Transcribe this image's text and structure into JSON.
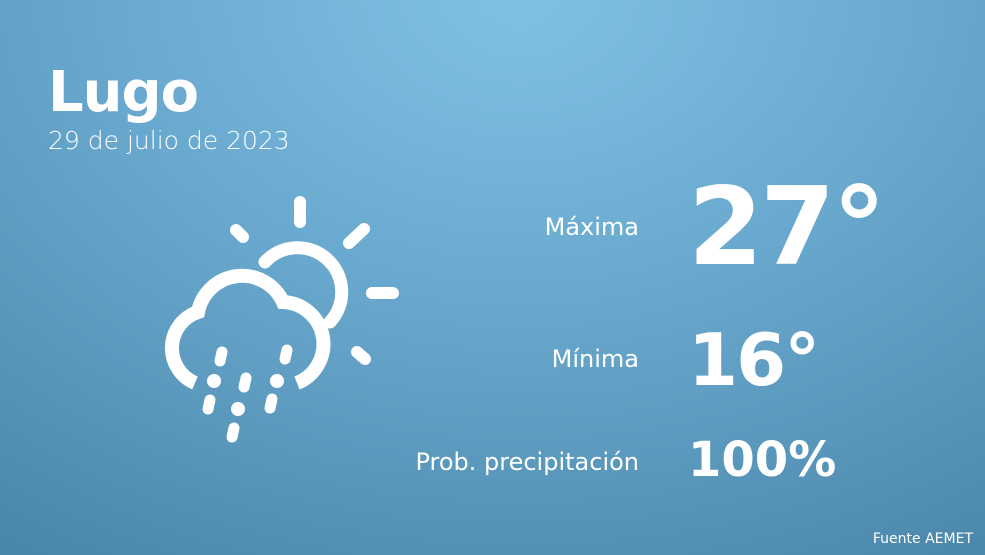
{
  "city": "Lugo",
  "date": "29 de julio de 2023",
  "icon": "cloud-sun-rain-icon",
  "stats": [
    {
      "label": "Máxima",
      "value": "27°"
    },
    {
      "label": "Mínima",
      "value": "16°"
    },
    {
      "label": "Prob. precipitación",
      "value": "100%"
    }
  ],
  "source": "Fuente AEMET",
  "colors": {
    "bg_top": "#7fc1e3",
    "bg_bottom": "#4b87aa",
    "text": "#ffffff"
  }
}
